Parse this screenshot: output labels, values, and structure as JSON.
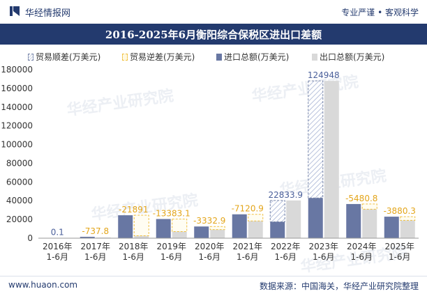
{
  "header": {
    "brand": "华经情报网",
    "tagline": "专业严谨 • 客观科学"
  },
  "footer": {
    "website": "www.huaon.com",
    "source": "数据来源：中国海关，华经产业研究院整理"
  },
  "watermarks": [
    "华经产业研究院",
    "华经产业研究院",
    "华经产业研究院",
    "华经产业研究院",
    "华经产业研究院"
  ],
  "colors": {
    "title_bar": "#233a6e",
    "import": "#6877a3",
    "export": "#d9d9d9",
    "trade_deficit": "#f0c040",
    "trade_surplus_label": "#4a5f9a"
  },
  "chart_data": {
    "type": "bar",
    "title": "2016-2025年6月衡阳综合保税区进出口差额",
    "categories": [
      "2016年\n1-6月",
      "2017年\n1-6月",
      "2018年\n1-6月",
      "2019年\n1-6月",
      "2020年\n1-6月",
      "2021年\n1-6月",
      "2022年\n1-6月",
      "2023年\n1-6月",
      "2024年\n1-6月",
      "2025年\n1-6月"
    ],
    "series": [
      {
        "name": "进口总额(万美元)",
        "values": [
          200,
          1500,
          24500,
          20500,
          12500,
          25500,
          17500,
          43000,
          36500,
          23000
        ]
      },
      {
        "name": "出口总额(万美元)",
        "values": [
          300,
          800,
          2600,
          7100,
          9200,
          18400,
          40300,
          168000,
          31000,
          19100
        ]
      }
    ],
    "balance": {
      "values": [
        0.1,
        -737.8,
        -21891,
        -13383.1,
        -3332.9,
        -7120.9,
        22833.9,
        124948,
        -5480.8,
        -3880.3
      ],
      "labels": [
        "0.1",
        "-737.8",
        "-21891",
        "-13383.1",
        "-3332.9",
        "-7120.9",
        "22833.9",
        "124948",
        "-5480.8",
        "-3880.3"
      ]
    },
    "legend": [
      {
        "name": "贸易顺差(万美元)",
        "swatch": "import-dash"
      },
      {
        "name": "贸易逆差(万美元)",
        "swatch": "export-dash"
      },
      {
        "name": "进口总额(万美元)",
        "swatch": "import"
      },
      {
        "name": "出口总额(万美元)",
        "swatch": "export"
      }
    ],
    "ylim": [
      0,
      180000
    ],
    "yticks": [
      0,
      20000,
      40000,
      60000,
      80000,
      100000,
      120000,
      140000,
      160000,
      180000
    ],
    "grid": false,
    "legend_position": "top"
  }
}
